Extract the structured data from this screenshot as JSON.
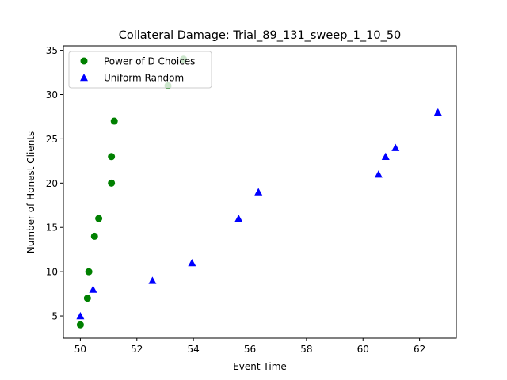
{
  "chart_data": {
    "type": "scatter",
    "title": "Collateral Damage: Trial_89_131_sweep_1_10_50",
    "xlabel": "Event Time",
    "ylabel": "Number of Honest Clients",
    "xlim": [
      49.4,
      63.3
    ],
    "ylim": [
      2.5,
      35.5
    ],
    "xticks": [
      50,
      52,
      54,
      56,
      58,
      60,
      62
    ],
    "yticks": [
      5,
      10,
      15,
      20,
      25,
      30,
      35
    ],
    "grid": false,
    "legend_position": "top-left",
    "series": [
      {
        "name": "Power of D Choices",
        "marker": "circle",
        "color": "#008000",
        "points": [
          {
            "x": 50.0,
            "y": 4
          },
          {
            "x": 50.25,
            "y": 7
          },
          {
            "x": 50.3,
            "y": 10
          },
          {
            "x": 50.5,
            "y": 14
          },
          {
            "x": 50.65,
            "y": 16
          },
          {
            "x": 51.1,
            "y": 20
          },
          {
            "x": 51.1,
            "y": 23
          },
          {
            "x": 51.2,
            "y": 27
          },
          {
            "x": 53.1,
            "y": 31
          },
          {
            "x": 53.65,
            "y": 34
          }
        ]
      },
      {
        "name": "Uniform Random",
        "marker": "triangle",
        "color": "#0000ff",
        "points": [
          {
            "x": 50.0,
            "y": 5
          },
          {
            "x": 50.45,
            "y": 8
          },
          {
            "x": 52.55,
            "y": 9
          },
          {
            "x": 53.95,
            "y": 11
          },
          {
            "x": 55.6,
            "y": 16
          },
          {
            "x": 56.3,
            "y": 19
          },
          {
            "x": 60.55,
            "y": 21
          },
          {
            "x": 60.8,
            "y": 23
          },
          {
            "x": 61.15,
            "y": 24
          },
          {
            "x": 62.65,
            "y": 28
          }
        ]
      }
    ]
  }
}
